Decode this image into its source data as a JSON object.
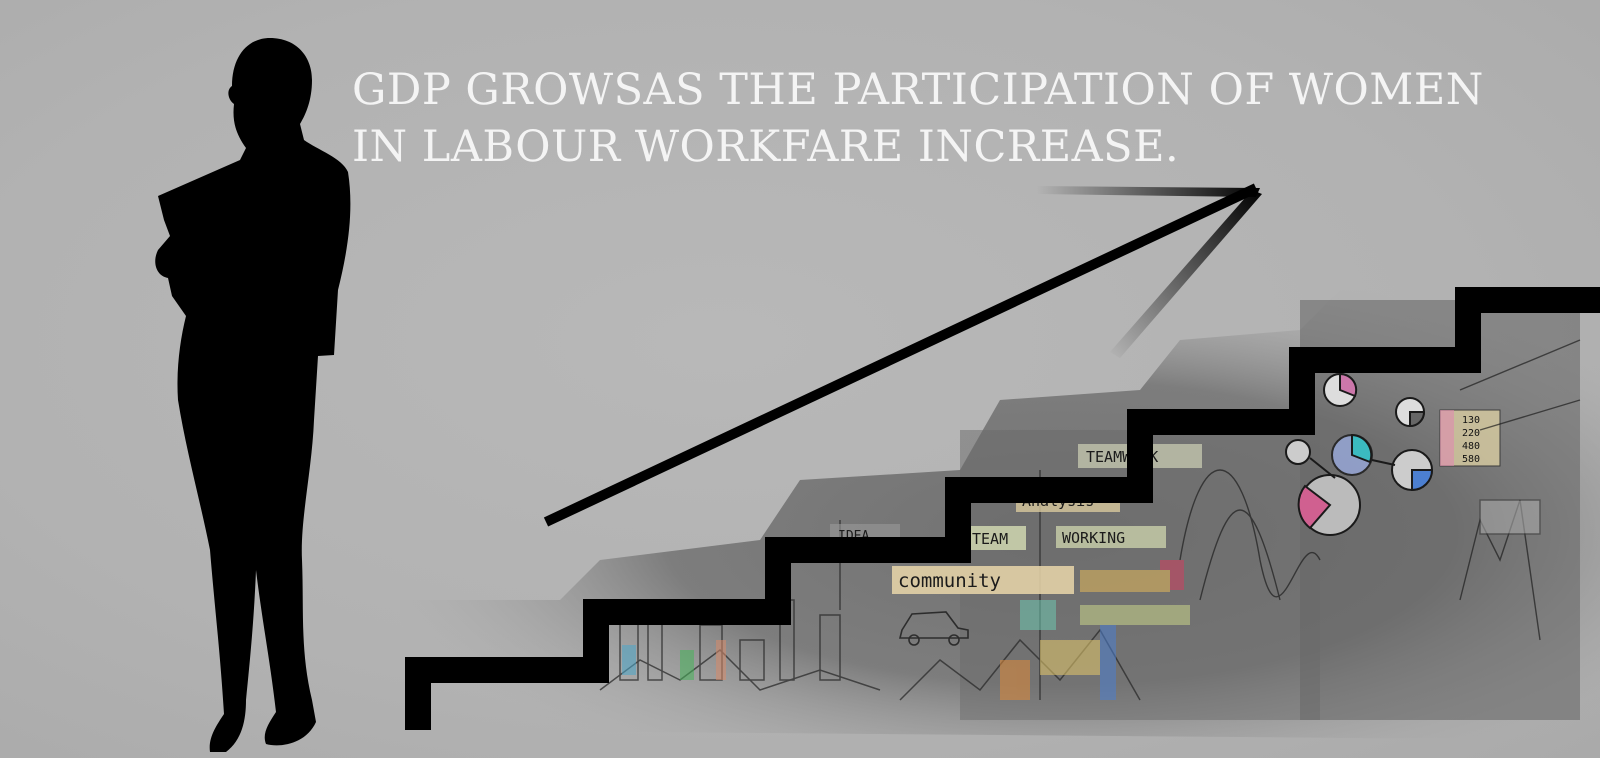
{
  "headline": {
    "line1": "GDP GROWSAS THE PARTICIPATION OF WOMEN",
    "line2": "IN LABOUR WORKFARE INCREASE."
  },
  "collage_labels": {
    "teamwork": "TEAMWORK",
    "analysis": "Analysis",
    "team": "TEAM",
    "working": "WORKING",
    "idea": "IDEA",
    "community": "community"
  },
  "collage_table": [
    "130",
    "220",
    "480",
    "580"
  ],
  "colors": {
    "background": "#b4b4b4",
    "silhouette": "#000000",
    "headline": "#f4f4f4",
    "stairs": "#000000"
  },
  "icons": [
    "woman-silhouette-icon",
    "growth-arrow-icon",
    "staircase-icon",
    "pie-chart-icon"
  ]
}
